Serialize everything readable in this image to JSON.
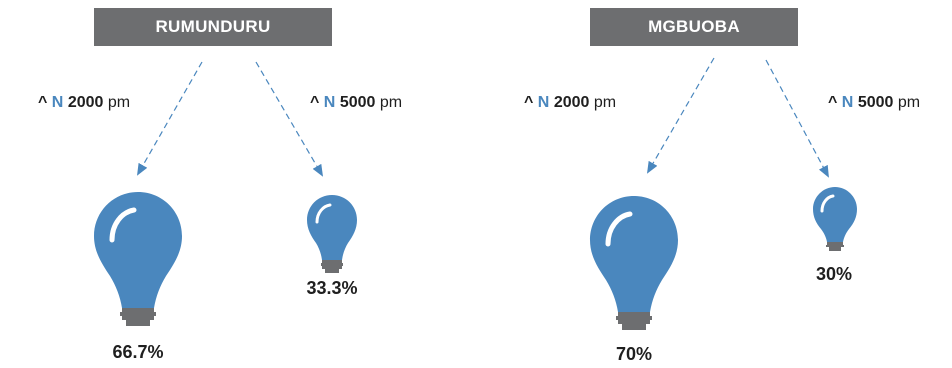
{
  "colors": {
    "header_bg": "#6d6e70",
    "bulb": "#4a87be",
    "bulb_base": "#6d6e70",
    "accent": "#4a87be"
  },
  "icons": {
    "bulb": "lightbulb-icon",
    "arrow": "dashed-arrow"
  },
  "panels": [
    {
      "location": "RUMUNDURU",
      "caret": "^",
      "n_label": "N",
      "unit": "pm",
      "options": [
        {
          "amount": "2000",
          "share": 66.7,
          "share_label": "66.7%"
        },
        {
          "amount": "5000",
          "share": 33.3,
          "share_label": "33.3%"
        }
      ]
    },
    {
      "location": "MGBUOBA",
      "caret": "^",
      "n_label": "N",
      "unit": "pm",
      "options": [
        {
          "amount": "2000",
          "share": 70,
          "share_label": "70%"
        },
        {
          "amount": "5000",
          "share": 30,
          "share_label": "30%"
        }
      ]
    }
  ]
}
